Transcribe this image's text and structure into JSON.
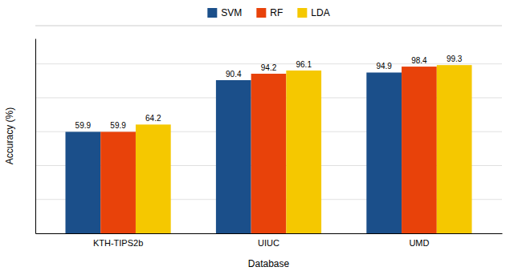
{
  "chart_data": {
    "type": "bar",
    "categories": [
      "KTH-TIPS2b",
      "UIUC",
      "UMD"
    ],
    "series": [
      {
        "name": "SVM",
        "color": "#1b4f8a",
        "values": [
          59.9,
          90.4,
          94.9
        ]
      },
      {
        "name": "RF",
        "color": "#e8420a",
        "values": [
          59.9,
          94.2,
          98.4
        ]
      },
      {
        "name": "LDA",
        "color": "#f5c800",
        "values": [
          64.2,
          96.1,
          99.3
        ]
      }
    ],
    "xlabel": "Database",
    "ylabel": "Accuracy (%)",
    "ylim": [
      0,
      115
    ],
    "yticks": [
      20,
      40,
      60,
      80,
      100
    ],
    "grid": true,
    "legend": "top",
    "data_labels": true,
    "tick_labels": "x"
  }
}
